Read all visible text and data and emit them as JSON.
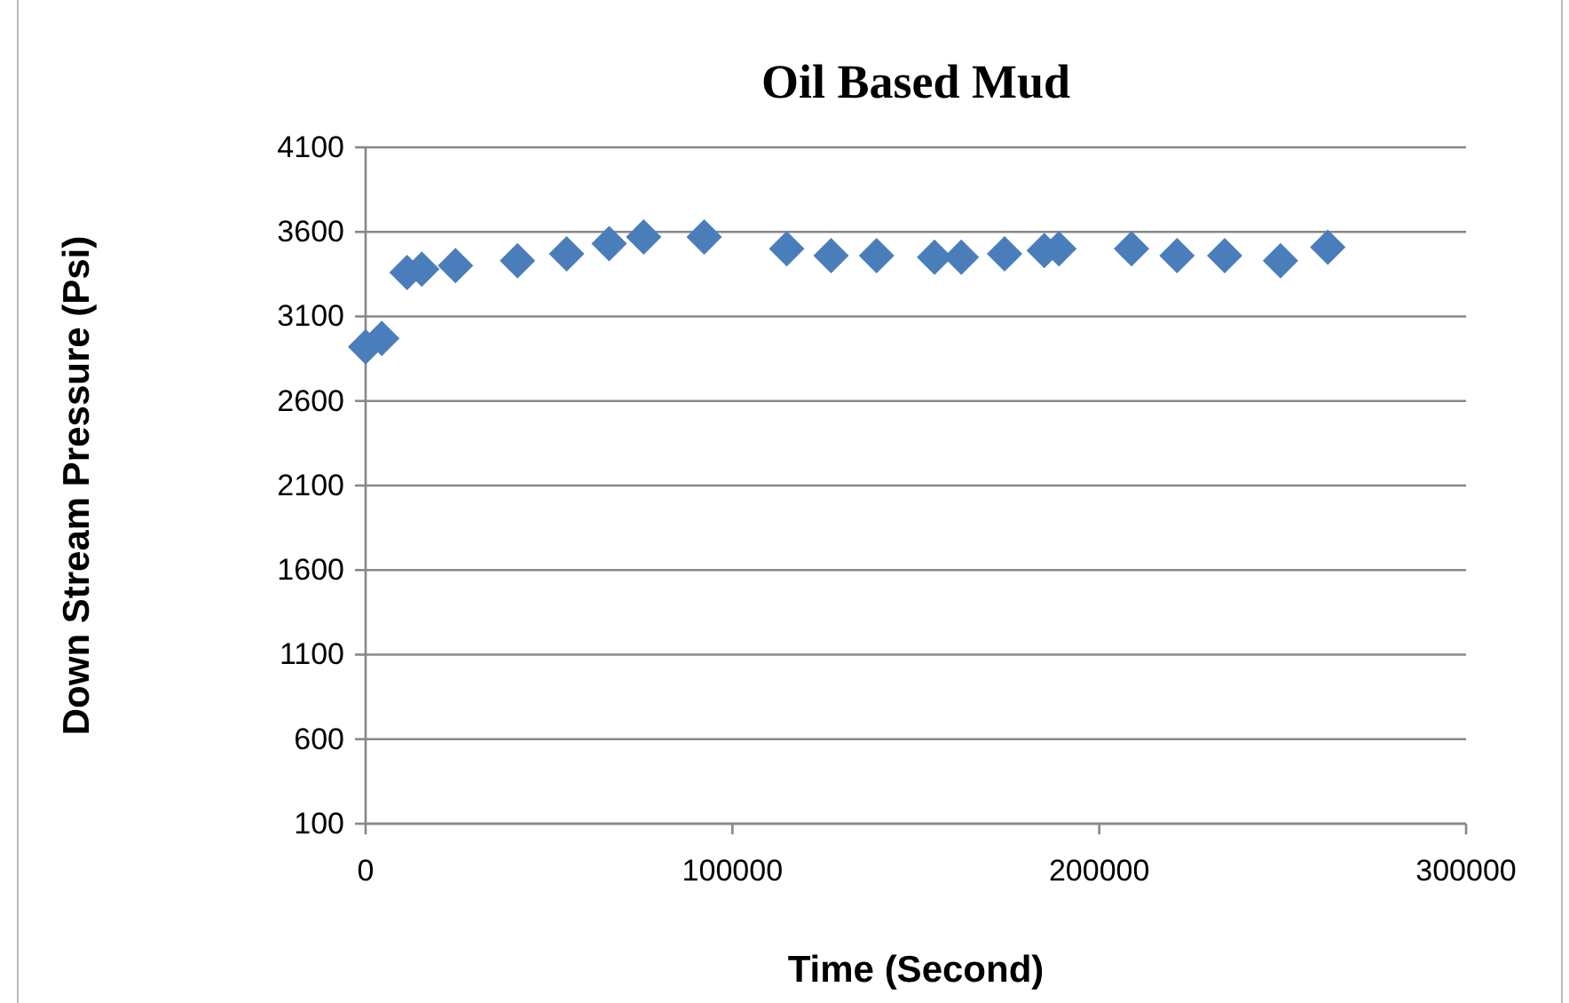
{
  "chart_data": {
    "type": "scatter",
    "title": "Oil Based Mud",
    "xlabel": "Time (Second)",
    "ylabel": "Down Stream Pressure (Psi)",
    "x": [
      0,
      4400,
      11300,
      15300,
      24500,
      41400,
      54800,
      66400,
      75800,
      92300,
      114800,
      126900,
      139300,
      155100,
      162400,
      174200,
      185000,
      189000,
      208800,
      221200,
      234200,
      249400,
      262300
    ],
    "values": [
      2920,
      2970,
      3360,
      3380,
      3400,
      3430,
      3470,
      3530,
      3570,
      3570,
      3500,
      3460,
      3460,
      3450,
      3450,
      3470,
      3490,
      3500,
      3500,
      3460,
      3460,
      3430,
      3510
    ],
    "color": "#4a7ebb",
    "marker": "diamond",
    "xlim": [
      0,
      300000
    ],
    "xticks": [
      0,
      100000,
      200000,
      300000
    ],
    "ylim": [
      100,
      4100
    ],
    "yticks": [
      100,
      600,
      1100,
      1600,
      2100,
      2600,
      3100,
      3600,
      4100
    ],
    "grid": "y"
  }
}
